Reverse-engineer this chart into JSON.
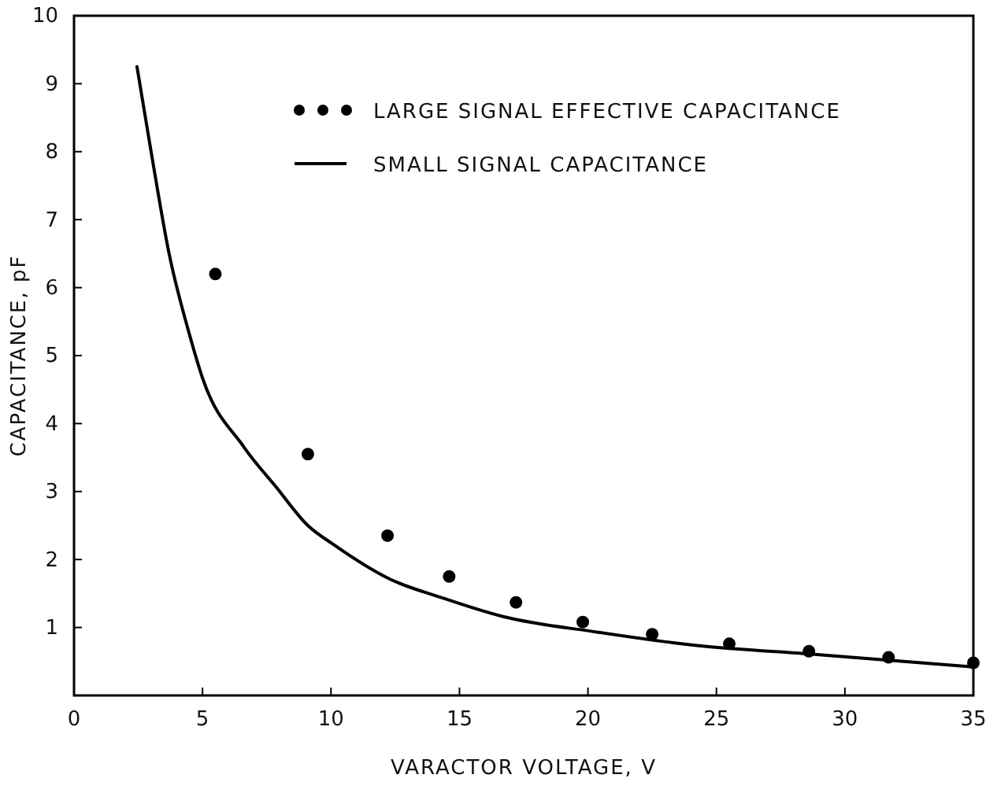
{
  "chart_data": {
    "type": "scatter",
    "xlabel": "VARACTOR VOLTAGE, V",
    "ylabel": "CAPACITANCE, pF",
    "xlim": [
      0,
      35
    ],
    "ylim": [
      0,
      10
    ],
    "xticks": [
      0,
      5,
      10,
      15,
      20,
      25,
      30,
      35
    ],
    "yticks": [
      {
        "value": 0,
        "label": null
      },
      1,
      2,
      3,
      4,
      5,
      6,
      7,
      8,
      9,
      10
    ],
    "grid": false,
    "legend": "top",
    "series": [
      {
        "name": "LARGE SIGNAL EFFECTIVE CAPACITANCE",
        "marker": "circle",
        "color": "#000000",
        "x": [
          5.5,
          9.1,
          12.2,
          14.6,
          17.2,
          19.8,
          22.5,
          25.5,
          28.6,
          31.7,
          35
        ],
        "values": [
          6.2,
          3.55,
          2.35,
          1.75,
          1.37,
          1.08,
          0.9,
          0.76,
          0.65,
          0.56,
          0.48
        ]
      },
      {
        "name": "SMALL SIGNAL CAPACITANCE",
        "type": "line",
        "color": "#000000",
        "line_style": "solid",
        "x": [
          2.45,
          3.0,
          3.7,
          4.5,
          5.0,
          6.6,
          7.9,
          9.1,
          10.1,
          12.3,
          14.3,
          16.7,
          20.4,
          24.1,
          29.0,
          35
        ],
        "values": [
          9.25,
          8.0,
          6.5,
          5.3,
          4.67,
          3.66,
          3.05,
          2.5,
          2.22,
          1.71,
          1.44,
          1.16,
          0.93,
          0.74,
          0.6,
          0.42
        ]
      }
    ]
  }
}
